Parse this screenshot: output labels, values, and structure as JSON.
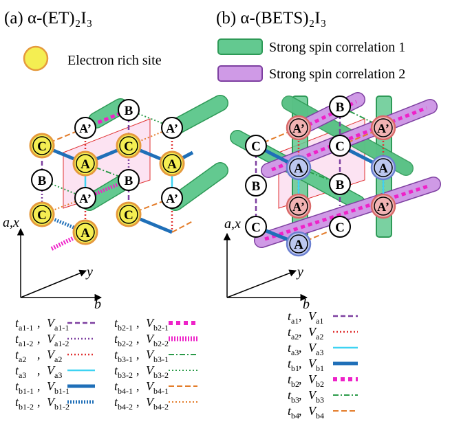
{
  "panel_a": {
    "title": "(a) α-(ET)₂I₃",
    "legend_rich": "Electron rich site",
    "axes": {
      "ax": "a,x",
      "y": "y",
      "b": "b"
    },
    "legend": {
      "left": [
        {
          "t": "ta1-1",
          "v": "Va1-1",
          "style": "dash-purple"
        },
        {
          "t": "ta1-2",
          "v": "Va1-2",
          "style": "dot-purple"
        },
        {
          "t": "ta2",
          "v": "Va2",
          "style": "dot-red"
        },
        {
          "t": "ta3",
          "v": "Va3",
          "style": "solid-cyan"
        },
        {
          "t": "tb1-1",
          "v": "Vb1-1",
          "style": "solid-blue"
        },
        {
          "t": "tb1-2",
          "v": "Vb1-2",
          "style": "dot-blue"
        }
      ],
      "right": [
        {
          "t": "tb2-1",
          "v": "Vb2-1",
          "style": "thick-magenta"
        },
        {
          "t": "tb2-2",
          "v": "Vb2-2",
          "style": "hatch-magenta"
        },
        {
          "t": "tb3-1",
          "v": "Vb3-1",
          "style": "dashdot-green"
        },
        {
          "t": "tb3-2",
          "v": "Vb3-2",
          "style": "dot-green"
        },
        {
          "t": "tb4-1",
          "v": "Vb4-1",
          "style": "dash-orange"
        },
        {
          "t": "tb4-2",
          "v": "Vb4-2",
          "style": "dot-orange"
        }
      ]
    }
  },
  "panel_b": {
    "title": "(b) α-(BETS)₂I₃",
    "legend_corr1": "Strong spin correlation 1",
    "legend_corr2": "Strong spin correlation 2",
    "axes": {
      "ax": "a,x",
      "y": "y",
      "b": "b"
    },
    "legend": [
      {
        "t": "ta1",
        "v": "Va1",
        "style": "dash-purple"
      },
      {
        "t": "ta2",
        "v": "Va2",
        "style": "dot-red"
      },
      {
        "t": "ta3",
        "v": "Va3",
        "style": "solid-cyan"
      },
      {
        "t": "tb1",
        "v": "Vb1",
        "style": "solid-blue"
      },
      {
        "t": "tb2",
        "v": "Vb2",
        "style": "thick-magenta"
      },
      {
        "t": "tb3",
        "v": "Vb3",
        "style": "dashdot-green"
      },
      {
        "t": "tb4",
        "v": "Vb4",
        "style": "dash-orange"
      }
    ]
  },
  "site_labels": {
    "A": "A",
    "Ap": "A’",
    "B": "B",
    "C": "C"
  },
  "colors": {
    "rich_fill": "#f4ee52",
    "rich_ring": "#e59a3d",
    "green": "#63c990",
    "green_edge": "#2e9a57",
    "purple": "#cf9ae6",
    "purple_edge": "#7d3fa0",
    "red_site": "#f1b3b3",
    "blue_site": "#bcc7ef",
    "cell_fill": "#fbdcef",
    "cell_edge": "#e03030"
  }
}
